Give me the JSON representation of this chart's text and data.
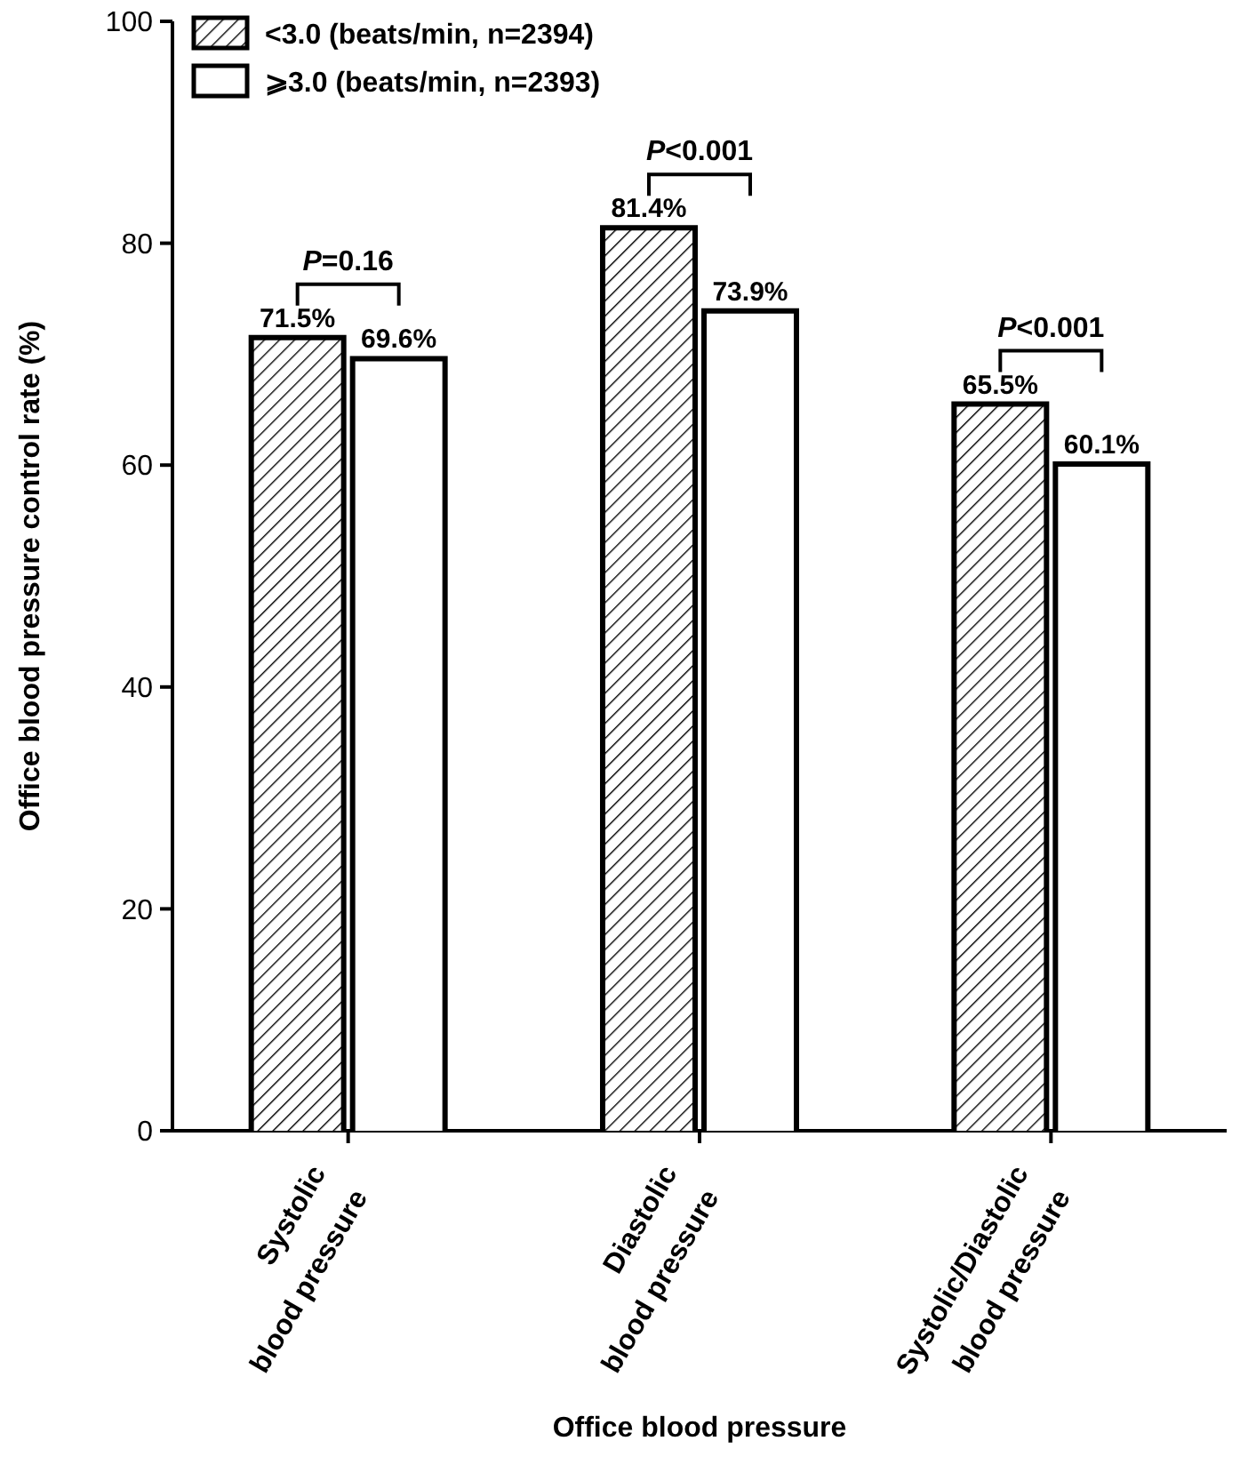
{
  "chart_data": {
    "type": "bar",
    "xlabel": "Office blood pressure",
    "ylabel": "Office blood pressure control rate (%)",
    "categories": [
      "Systolic\nblood pressure",
      "Diastolic\nblood pressure",
      "Systolic/Diastolic\nblood pressure"
    ],
    "series": [
      {
        "name": "<3.0 (beats/min, n=2394)",
        "color": "#000000",
        "values": [
          71.5,
          81.4,
          65.5
        ],
        "value_labels": [
          "71.5%",
          "81.4%",
          "65.5%"
        ]
      },
      {
        "name": "⩾3.0 (beats/min, n=2393)",
        "color": "#ffffff",
        "values": [
          69.6,
          73.9,
          60.1
        ],
        "value_labels": [
          "69.6%",
          "73.9%",
          "60.1%"
        ]
      }
    ],
    "annotations": [
      "P=0.16",
      "P<0.001",
      "P<0.001"
    ],
    "ylim": [
      0,
      100
    ],
    "yticks": [
      0,
      20,
      40,
      60,
      80,
      100
    ],
    "grid": false,
    "legend": "top left"
  }
}
